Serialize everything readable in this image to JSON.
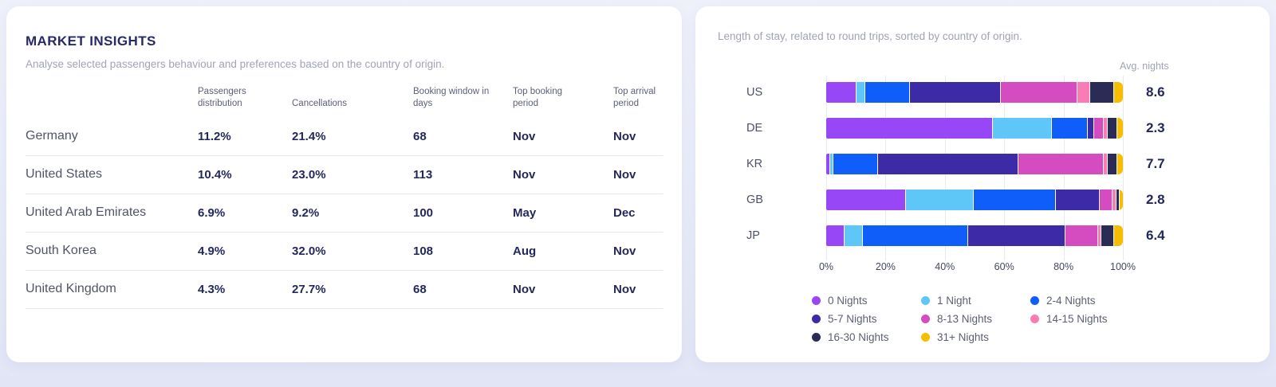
{
  "market_insights": {
    "title": "MARKET INSIGHTS",
    "subtitle": "Analyse selected passengers behaviour and preferences based on the country of origin.",
    "columns": [
      "Passengers distribution",
      "Cancellations",
      "Booking window in days",
      "Top booking period",
      "Top arrival period"
    ],
    "rows": [
      {
        "country": "Germany",
        "passengers_distribution": "11.2%",
        "cancellations": "21.4%",
        "booking_window_days": "68",
        "top_booking_period": "Nov",
        "top_arrival_period": "Nov"
      },
      {
        "country": "United States",
        "passengers_distribution": "10.4%",
        "cancellations": "23.0%",
        "booking_window_days": "113",
        "top_booking_period": "Nov",
        "top_arrival_period": "Nov"
      },
      {
        "country": "United Arab Emirates",
        "passengers_distribution": "6.9%",
        "cancellations": "9.2%",
        "booking_window_days": "100",
        "top_booking_period": "May",
        "top_arrival_period": "Dec"
      },
      {
        "country": "South Korea",
        "passengers_distribution": "4.9%",
        "cancellations": "32.0%",
        "booking_window_days": "108",
        "top_booking_period": "Aug",
        "top_arrival_period": "Nov"
      },
      {
        "country": "United Kingdom",
        "passengers_distribution": "4.3%",
        "cancellations": "27.7%",
        "booking_window_days": "68",
        "top_booking_period": "Nov",
        "top_arrival_period": "Nov"
      }
    ]
  },
  "length_of_stay": {
    "title": "Length of stay, related to round trips, sorted by country of origin.",
    "avg_nights_label": "Avg. nights"
  },
  "chart_data": {
    "type": "bar",
    "orientation": "horizontal",
    "stacked": true,
    "title": "Length of stay, related to round trips, sorted by country of origin.",
    "categories": [
      "US",
      "DE",
      "KR",
      "GB",
      "JP"
    ],
    "avg_nights": [
      "8.6",
      "2.3",
      "7.7",
      "2.8",
      "6.4"
    ],
    "series": [
      {
        "name": "0 Nights",
        "color": "#9747f5",
        "values": [
          10,
          57,
          1,
          27,
          6
        ]
      },
      {
        "name": "1 Night",
        "color": "#5ec7f8",
        "values": [
          3,
          20,
          1,
          23,
          6
        ]
      },
      {
        "name": "2-4 Nights",
        "color": "#0f5ef9",
        "values": [
          15,
          12,
          15,
          28,
          36
        ]
      },
      {
        "name": "5-7 Nights",
        "color": "#3d2aa6",
        "values": [
          31,
          2,
          48,
          15,
          33
        ]
      },
      {
        "name": "8-13 Nights",
        "color": "#d44cc0",
        "values": [
          26,
          3,
          29,
          4,
          11
        ]
      },
      {
        "name": "14-15 Nights",
        "color": "#f97cb5",
        "values": [
          4,
          1,
          1,
          1,
          1
        ]
      },
      {
        "name": "16-30 Nights",
        "color": "#2b2c55",
        "values": [
          8,
          3,
          3,
          1,
          4
        ]
      },
      {
        "name": "31+ Nights",
        "color": "#f7bd00",
        "values": [
          3,
          2,
          2,
          1,
          3
        ]
      }
    ],
    "x_ticks": [
      "0%",
      "20%",
      "40%",
      "60%",
      "80%",
      "100%"
    ],
    "xlim": [
      0,
      100
    ],
    "grid": true,
    "legend_position": "bottom"
  }
}
